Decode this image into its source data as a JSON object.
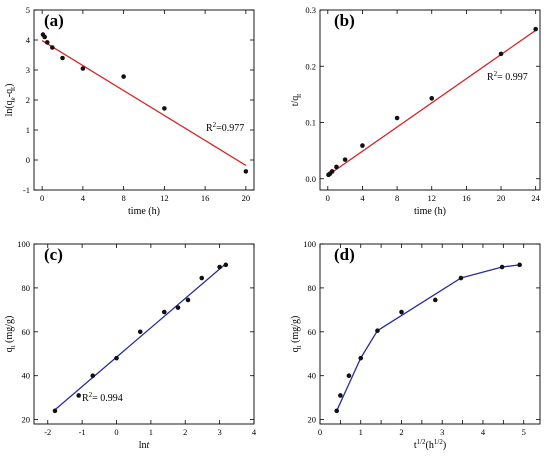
{
  "colors": {
    "fit_red": "#d62728",
    "fit_blue": "#2a2e9c",
    "point": "#111111"
  },
  "chart_data": [
    {
      "id": "a",
      "panel_label": "(a)",
      "type": "scatter",
      "xlabel": "time (h)",
      "ylabel": "ln(qe-qt)",
      "xlim": [
        -0.8,
        20.8
      ],
      "ylim": [
        -1,
        5
      ],
      "xticks": [
        0,
        4,
        8,
        12,
        16,
        20
      ],
      "yticks": [
        -1,
        0,
        1,
        2,
        3,
        4,
        5
      ],
      "points": {
        "x": [
          0.083,
          0.25,
          0.5,
          1,
          2,
          4,
          8,
          12,
          20
        ],
        "y": [
          4.18,
          4.1,
          3.92,
          3.75,
          3.4,
          3.05,
          2.78,
          1.72,
          -0.38
        ]
      },
      "fit": {
        "type": "line",
        "x": [
          0,
          20
        ],
        "y": [
          3.98,
          -0.18
        ],
        "color_key": "fit_red"
      },
      "annotation": {
        "text": "R2=0.977",
        "main": "R",
        "sup": "2",
        "rest": "=0.977"
      }
    },
    {
      "id": "b",
      "panel_label": "(b)",
      "type": "scatter",
      "xlabel": "time (h)",
      "ylabel": "t/qt",
      "xlim": [
        -0.9,
        24.5
      ],
      "ylim": [
        -0.02,
        0.3
      ],
      "xticks": [
        0,
        4,
        8,
        12,
        16,
        20,
        24
      ],
      "yticks": [
        0.0,
        0.1,
        0.2,
        0.3
      ],
      "ytick_labels": [
        "0.0",
        "0.1",
        "0.2",
        "0.3"
      ],
      "points": {
        "x": [
          0.083,
          0.25,
          0.5,
          1,
          2,
          4,
          8,
          12,
          20,
          24
        ],
        "y": [
          0.007,
          0.009,
          0.013,
          0.021,
          0.034,
          0.059,
          0.108,
          0.143,
          0.222,
          0.266
        ]
      },
      "fit": {
        "type": "line",
        "x": [
          0,
          24
        ],
        "y": [
          0.006,
          0.264
        ],
        "color_key": "fit_red"
      },
      "annotation": {
        "text": "R2= 0.997",
        "main": "R",
        "sup": "2",
        "rest": "= 0.997"
      }
    },
    {
      "id": "c",
      "panel_label": "(c)",
      "type": "scatter",
      "xlabel": "lnt",
      "ylabel": "qt (mg/g)",
      "xlim": [
        -2.4,
        4
      ],
      "ylim": [
        18,
        100
      ],
      "xticks": [
        -2,
        -1,
        0,
        1,
        2,
        3,
        4
      ],
      "yticks": [
        20,
        40,
        60,
        80,
        100
      ],
      "points": {
        "x": [
          -1.79,
          -1.1,
          -0.69,
          0.0,
          0.69,
          1.39,
          1.79,
          2.08,
          2.48,
          3.0,
          3.18
        ],
        "y": [
          24,
          31,
          40,
          48,
          60,
          69,
          71,
          74.5,
          84.5,
          89.5,
          90.5
        ]
      },
      "fit": {
        "type": "line",
        "x": [
          -1.79,
          3.18
        ],
        "y": [
          24.5,
          91.0
        ],
        "color_key": "fit_blue"
      },
      "annotation": {
        "text": "R2= 0.994",
        "main": "R",
        "sup": "2",
        "rest": "= 0.994"
      }
    },
    {
      "id": "d",
      "panel_label": "(d)",
      "type": "line",
      "xlabel": "t1/2(h1/2)",
      "ylabel": "qt (mg/g)",
      "xlim": [
        0,
        5.4
      ],
      "ylim": [
        18,
        100
      ],
      "xticks": [
        0,
        0.5,
        1,
        1.5,
        2,
        2.5,
        3,
        3.5,
        4,
        4.5,
        5
      ],
      "xtick_labels": [
        "0",
        "",
        "1",
        "",
        "2",
        "",
        "3",
        "",
        "4",
        "",
        "5"
      ],
      "yticks": [
        20,
        40,
        60,
        80,
        100
      ],
      "points": {
        "x": [
          0.41,
          0.5,
          0.71,
          1.0,
          1.41,
          2.0,
          2.83,
          3.46,
          4.47,
          4.9
        ],
        "y": [
          24,
          31,
          40,
          48,
          60.5,
          69,
          74.5,
          84.5,
          89.5,
          90.5
        ]
      },
      "fit": {
        "type": "polyline",
        "x": [
          0.41,
          1.0,
          1.41,
          3.46,
          4.47,
          4.9
        ],
        "y": [
          24,
          48,
          60.5,
          84.5,
          89.5,
          90.5
        ],
        "color_key": "fit_blue"
      },
      "annotation": null
    }
  ]
}
